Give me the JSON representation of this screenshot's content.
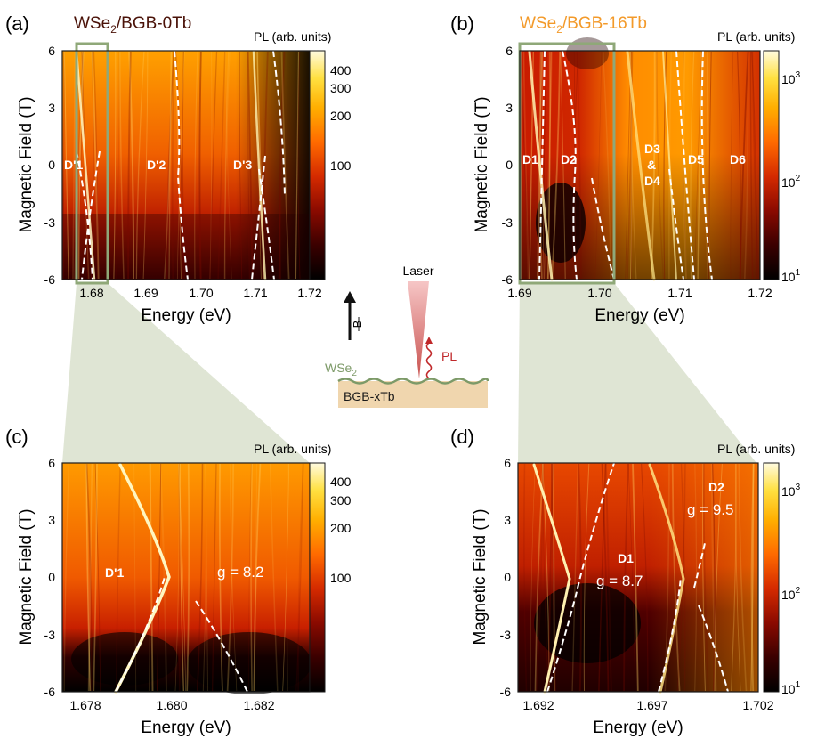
{
  "panels": [
    {
      "id": "a",
      "label": "(a)",
      "title": {
        "prefix": "WSe",
        "sub": "2",
        "suffix": "/BGB-0Tb",
        "color": "#4a1208"
      },
      "xlabel": "Energy (eV)",
      "ylabel": "Magnetic Field (T)",
      "xticks": [
        "1.68",
        "1.69",
        "1.70",
        "1.71",
        "1.72"
      ],
      "yticks": [
        "6",
        "3",
        "0",
        "-3",
        "-6"
      ],
      "colorbar_label": "PL (arb. units)",
      "colorbar_ticks": [
        "400",
        "300",
        "200",
        "100"
      ],
      "annotations": [
        "D'1",
        "D'2",
        "D'3"
      ]
    },
    {
      "id": "b",
      "label": "(b)",
      "title": {
        "prefix": "WSe",
        "sub": "2",
        "suffix": "/BGB-16Tb",
        "color": "#f39a2a"
      },
      "xlabel": "Energy (eV)",
      "ylabel": "Magnetic Field (T)",
      "xticks": [
        "1.69",
        "1.70",
        "1.71",
        "1.72"
      ],
      "yticks": [
        "6",
        "3",
        "0",
        "-3",
        "-6"
      ],
      "colorbar_label": "PL (arb. units)",
      "colorbar_ticks": [
        "10",
        "10",
        "10"
      ],
      "colorbar_exps": [
        "3",
        "2",
        "1"
      ],
      "annotations": [
        "D1",
        "D2",
        "D3",
        "&",
        "D4",
        "D5",
        "D6"
      ]
    },
    {
      "id": "c",
      "label": "(c)",
      "xlabel": "Energy (eV)",
      "ylabel": "Magnetic Field (T)",
      "xticks": [
        "1.678",
        "1.680",
        "1.682"
      ],
      "yticks": [
        "6",
        "3",
        "0",
        "-3",
        "-6"
      ],
      "colorbar_label": "PL (arb. units)",
      "colorbar_ticks": [
        "400",
        "300",
        "200",
        "100"
      ],
      "annotations": [
        "D'1",
        "g = 8.2"
      ]
    },
    {
      "id": "d",
      "label": "(d)",
      "xlabel": "Energy (eV)",
      "ylabel": "Magnetic Field (T)",
      "xticks": [
        "1.692",
        "1.697",
        "1.702"
      ],
      "yticks": [
        "6",
        "3",
        "0",
        "-3",
        "-6"
      ],
      "colorbar_label": "PL (arb. units)",
      "colorbar_ticks": [
        "10",
        "10",
        "10"
      ],
      "colorbar_exps": [
        "3",
        "2",
        "1"
      ],
      "annotations": [
        "D2",
        "g = 9.5",
        "D1",
        "g = 8.7"
      ]
    }
  ],
  "schematic": {
    "laser_label": "Laser",
    "field_label": "B",
    "pl_label": "PL",
    "layer_label_prefix": "WSe",
    "layer_label_sub": "2",
    "substrate_label": "BGB-xTb"
  },
  "colors": {
    "colormap": [
      "#000000",
      "#3a0000",
      "#8a0a00",
      "#d42a00",
      "#ff6a00",
      "#ffae00",
      "#ffe040",
      "#fffbe0"
    ],
    "dashed_line": "#ffffff",
    "highlight_box": "#8fa878",
    "zoom_shade": "#d4dcc6",
    "substrate": "#f0d6ae",
    "wse2_layer": "#7d9a68",
    "laser": "#e08a8a",
    "pl_wave": "#c0282a"
  },
  "chart_data": [
    {
      "panel": "a",
      "type": "heatmap",
      "title": "WSe2/BGB-0Tb",
      "xlabel": "Energy (eV)",
      "ylabel": "Magnetic Field (T)",
      "xlim": [
        1.675,
        1.72
      ],
      "ylim": [
        -6,
        6
      ],
      "colorbar": {
        "label": "PL (arb. units)",
        "scale": "log",
        "ticks": [
          100,
          200,
          300,
          400
        ]
      },
      "series": [
        {
          "name": "D'1",
          "x": [
            1.6785,
            1.68,
            1.6815
          ],
          "y": [
            6,
            0,
            -6
          ]
        },
        {
          "name": "D'2",
          "x": [
            1.6948,
            1.696,
            1.6982
          ],
          "y": [
            6,
            0,
            -6
          ]
        },
        {
          "name": "D'3",
          "x": [
            1.711,
            1.714,
            1.716
          ],
          "y": [
            6,
            0,
            -6
          ]
        }
      ],
      "highlight_box": {
        "x": [
          1.6765,
          1.683
        ],
        "y": [
          -6,
          6
        ]
      }
    },
    {
      "panel": "b",
      "type": "heatmap",
      "title": "WSe2/BGB-16Tb",
      "xlabel": "Energy (eV)",
      "ylabel": "Magnetic Field (T)",
      "xlim": [
        1.69,
        1.72
      ],
      "ylim": [
        -6,
        6
      ],
      "colorbar": {
        "label": "PL (arb. units)",
        "scale": "log",
        "ticks": [
          10,
          100,
          1000
        ]
      },
      "series": [
        {
          "name": "D1",
          "x": [
            1.6924,
            1.694,
            1.6958
          ],
          "y": [
            6,
            0,
            -6
          ]
        },
        {
          "name": "D2",
          "x": [
            1.696,
            1.6992,
            1.6985
          ],
          "y": [
            6,
            0,
            -6
          ]
        },
        {
          "name": "D3 & D4",
          "x": [
            1.7085,
            1.7105,
            1.71
          ],
          "y": [
            6,
            0,
            -6
          ]
        },
        {
          "name": "D5",
          "x": [
            1.7118,
            1.713,
            1.714
          ],
          "y": [
            6,
            0,
            -6
          ]
        },
        {
          "name": "D6",
          "x": [
            1.715,
            1.716,
            1.718
          ],
          "y": [
            6,
            0,
            -6
          ]
        }
      ],
      "highlight_box": {
        "x": [
          1.6906,
          1.702
        ],
        "y": [
          -6,
          6
        ]
      }
    },
    {
      "panel": "c",
      "type": "heatmap",
      "xlabel": "Energy (eV)",
      "ylabel": "Magnetic Field (T)",
      "xlim": [
        1.6775,
        1.6831
      ],
      "ylim": [
        -6,
        6
      ],
      "colorbar": {
        "label": "PL (arb. units)",
        "scale": "log",
        "ticks": [
          100,
          200,
          300,
          400
        ]
      },
      "series": [
        {
          "name": "D'1",
          "g": 8.2,
          "x": [
            1.679,
            1.68,
            1.681
          ],
          "y": [
            6,
            0,
            -6
          ]
        }
      ]
    },
    {
      "panel": "d",
      "type": "heatmap",
      "xlabel": "Energy (eV)",
      "ylabel": "Magnetic Field (T)",
      "xlim": [
        1.6905,
        1.702
      ],
      "ylim": [
        -6,
        6
      ],
      "colorbar": {
        "label": "PL (arb. units)",
        "scale": "log",
        "ticks": [
          10,
          100,
          1000
        ]
      },
      "series": [
        {
          "name": "D1",
          "g": 8.7,
          "x": [
            1.693,
            1.694,
            1.696
          ],
          "y": [
            6,
            0,
            -6
          ]
        },
        {
          "name": "D2",
          "g": 9.5,
          "x": [
            1.6965,
            1.699,
            1.701
          ],
          "y": [
            6,
            0,
            -6
          ]
        }
      ]
    }
  ]
}
